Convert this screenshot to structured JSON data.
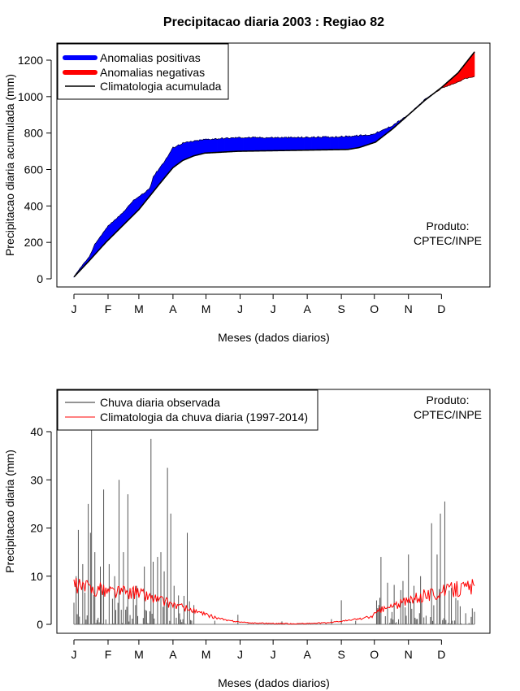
{
  "colors": {
    "positive": "#0000ff",
    "negative": "#ff0000",
    "climatology": "#000000",
    "observed": "#555555",
    "clim_daily": "#ff0000"
  },
  "chart_data": [
    {
      "type": "area",
      "title": "Precipitacao diaria 2003 : Regiao 82",
      "xlabel": "Meses (dados diarios)",
      "ylabel": "Precipitacao diaria acumulada (mm)",
      "ylim": [
        0,
        1250
      ],
      "yticks": [
        0,
        200,
        400,
        600,
        800,
        1000,
        1200
      ],
      "month_labels": [
        "J",
        "F",
        "M",
        "A",
        "M",
        "J",
        "J",
        "A",
        "S",
        "O",
        "N",
        "D"
      ],
      "month_start_days": [
        1,
        32,
        60,
        91,
        121,
        152,
        182,
        213,
        244,
        274,
        305,
        335
      ],
      "legend": [
        "Anomalias positivas",
        "Anomalias negativas",
        "Climatologia acumulada"
      ],
      "annotation_line1": "Produto:",
      "annotation_line2": "CPTEC/INPE",
      "climatology_knots": [
        [
          1,
          10
        ],
        [
          15,
          100
        ],
        [
          30,
          200
        ],
        [
          60,
          380
        ],
        [
          80,
          530
        ],
        [
          91,
          610
        ],
        [
          100,
          650
        ],
        [
          110,
          675
        ],
        [
          120,
          690
        ],
        [
          150,
          700
        ],
        [
          200,
          705
        ],
        [
          250,
          710
        ],
        [
          260,
          720
        ],
        [
          275,
          750
        ],
        [
          290,
          820
        ],
        [
          305,
          900
        ],
        [
          320,
          980
        ],
        [
          335,
          1050
        ],
        [
          350,
          1130
        ],
        [
          365,
          1245
        ]
      ],
      "observed_knots": [
        [
          1,
          10
        ],
        [
          8,
          70
        ],
        [
          15,
          120
        ],
        [
          20,
          190
        ],
        [
          32,
          290
        ],
        [
          45,
          360
        ],
        [
          55,
          430
        ],
        [
          65,
          470
        ],
        [
          70,
          500
        ],
        [
          73,
          560
        ],
        [
          85,
          660
        ],
        [
          91,
          720
        ],
        [
          100,
          745
        ],
        [
          110,
          755
        ],
        [
          120,
          765
        ],
        [
          150,
          775
        ],
        [
          200,
          775
        ],
        [
          245,
          780
        ],
        [
          270,
          790
        ],
        [
          280,
          810
        ],
        [
          290,
          840
        ],
        [
          305,
          900
        ],
        [
          320,
          985
        ],
        [
          335,
          1045
        ],
        [
          350,
          1080
        ],
        [
          357,
          1100
        ],
        [
          365,
          1110
        ]
      ]
    },
    {
      "type": "bar",
      "xlabel": "Meses (dados diarios)",
      "ylabel": "Precipitacao diaria (mm)",
      "ylim": [
        0,
        48
      ],
      "yticks": [
        0,
        10,
        20,
        30,
        40
      ],
      "month_labels": [
        "J",
        "F",
        "M",
        "A",
        "M",
        "J",
        "J",
        "A",
        "S",
        "O",
        "N",
        "D"
      ],
      "month_start_days": [
        1,
        32,
        60,
        91,
        121,
        152,
        182,
        213,
        244,
        274,
        305,
        335
      ],
      "legend": [
        "Chuva diaria observada",
        "Climatologia da chuva diaria (1997-2014)"
      ],
      "annotation_line1": "Produto:",
      "annotation_line2": "CPTEC/INPE",
      "peaks": [
        [
          1,
          4.5
        ],
        [
          3,
          10
        ],
        [
          5,
          19.6
        ],
        [
          9,
          12.5
        ],
        [
          14,
          25
        ],
        [
          16,
          19
        ],
        [
          17,
          41
        ],
        [
          20,
          15
        ],
        [
          25,
          12
        ],
        [
          28,
          28
        ],
        [
          33,
          12.5
        ],
        [
          38,
          10
        ],
        [
          42,
          30
        ],
        [
          46,
          15
        ],
        [
          50,
          27
        ],
        [
          55,
          7
        ],
        [
          58,
          8
        ],
        [
          65,
          12
        ],
        [
          71,
          38.5
        ],
        [
          73,
          13
        ],
        [
          77,
          14
        ],
        [
          80,
          15
        ],
        [
          83,
          11
        ],
        [
          86,
          32.5
        ],
        [
          89,
          23
        ],
        [
          92,
          8
        ],
        [
          96,
          6
        ],
        [
          104,
          19
        ],
        [
          110,
          4
        ],
        [
          150,
          2
        ],
        [
          244,
          5
        ],
        [
          278,
          4
        ],
        [
          280,
          14
        ],
        [
          300,
          9
        ],
        [
          305,
          14.5
        ],
        [
          310,
          8
        ],
        [
          316,
          10
        ],
        [
          326,
          21
        ],
        [
          331,
          14.5
        ],
        [
          334,
          23
        ],
        [
          338,
          25.5
        ],
        [
          342,
          7
        ],
        [
          350,
          5
        ]
      ],
      "clim_daily_knots": [
        [
          1,
          8
        ],
        [
          30,
          7
        ],
        [
          60,
          6.5
        ],
        [
          80,
          5
        ],
        [
          100,
          3.5
        ],
        [
          120,
          2
        ],
        [
          140,
          0.8
        ],
        [
          160,
          0.3
        ],
        [
          200,
          0.1
        ],
        [
          230,
          0.3
        ],
        [
          250,
          0.8
        ],
        [
          270,
          1.5
        ],
        [
          280,
          3
        ],
        [
          300,
          4.5
        ],
        [
          320,
          6
        ],
        [
          340,
          7
        ],
        [
          365,
          8
        ]
      ]
    }
  ]
}
